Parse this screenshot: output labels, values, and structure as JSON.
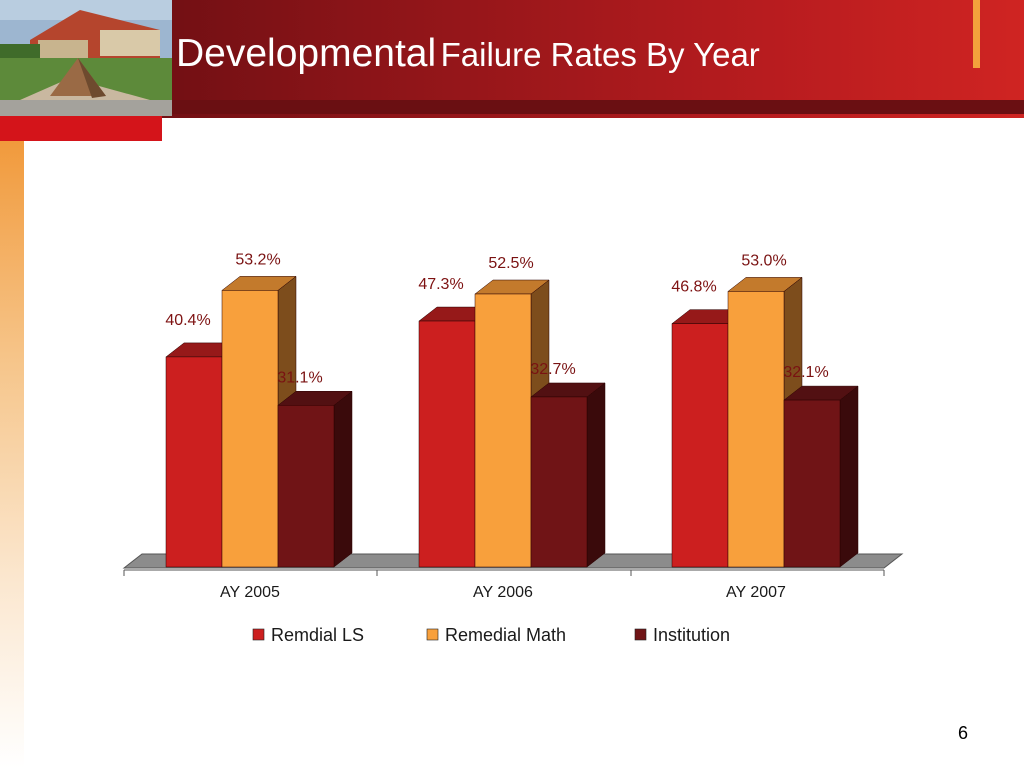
{
  "title": {
    "part1": "Developmental",
    "part2": "Failure Rates By Year"
  },
  "page_number": "6",
  "colors": {
    "remedial_ls": "#cc1f1f",
    "remedial_math": "#f8a03c",
    "institution": "#701416"
  },
  "chart_data": {
    "type": "bar",
    "categories": [
      "AY 2005",
      "AY 2006",
      "AY 2007"
    ],
    "series": [
      {
        "name": "Remdial LS",
        "values": [
          40.4,
          47.3,
          46.8
        ],
        "labels": [
          "40.4%",
          "47.3%",
          "46.8%"
        ]
      },
      {
        "name": "Remedial Math",
        "values": [
          53.2,
          52.5,
          53.0
        ],
        "labels": [
          "53.2%",
          "52.5%",
          "53.0%"
        ]
      },
      {
        "name": "Institution",
        "values": [
          31.1,
          32.7,
          32.1
        ],
        "labels": [
          "31.1%",
          "32.7%",
          "32.1%"
        ]
      }
    ],
    "ylim": [
      0,
      60
    ],
    "grid": false,
    "legend": "bottom",
    "style": "3d-clustered-column"
  }
}
